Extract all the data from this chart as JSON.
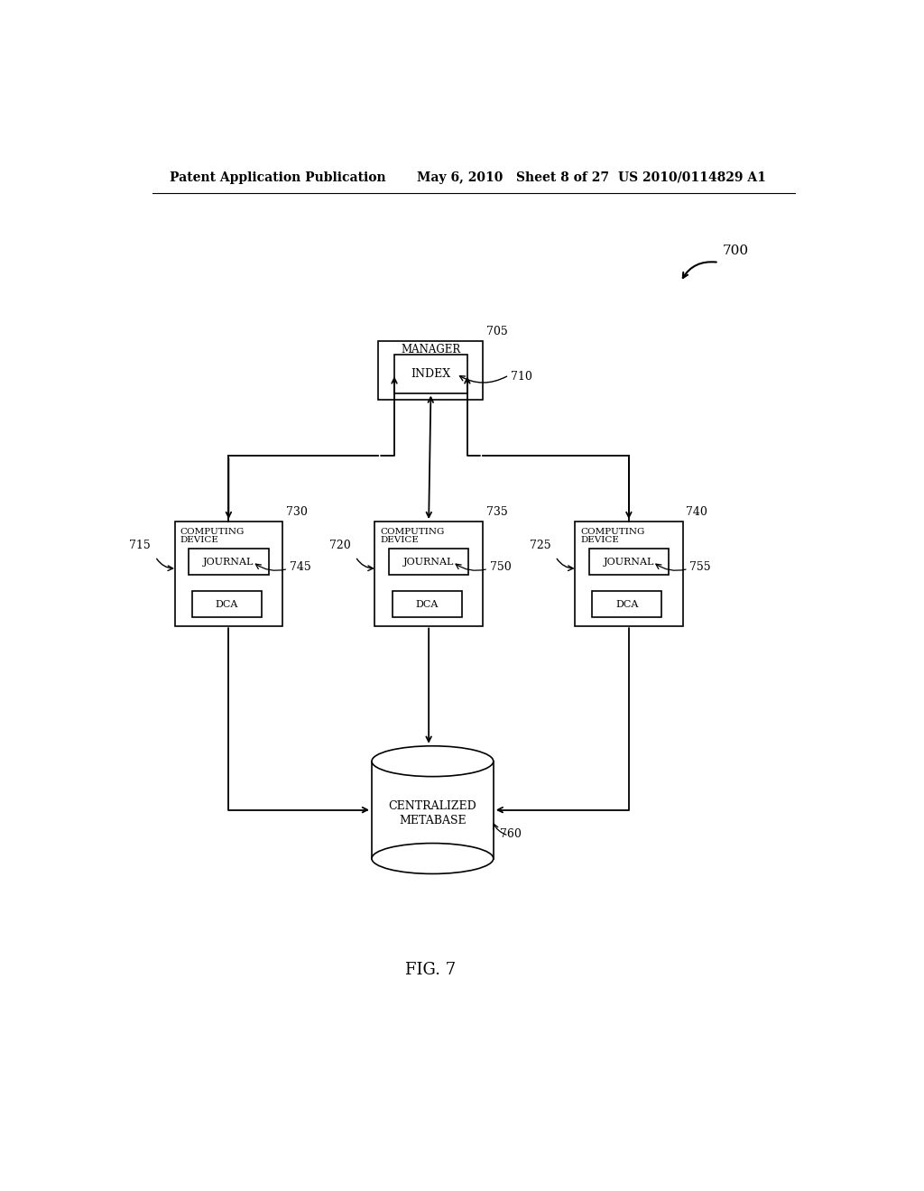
{
  "background_color": "#ffffff",
  "header_left": "Patent Application Publication",
  "header_mid": "May 6, 2010   Sheet 8 of 27",
  "header_right": "US 2010/0114829 A1",
  "fig_label": "FIG. 7"
}
